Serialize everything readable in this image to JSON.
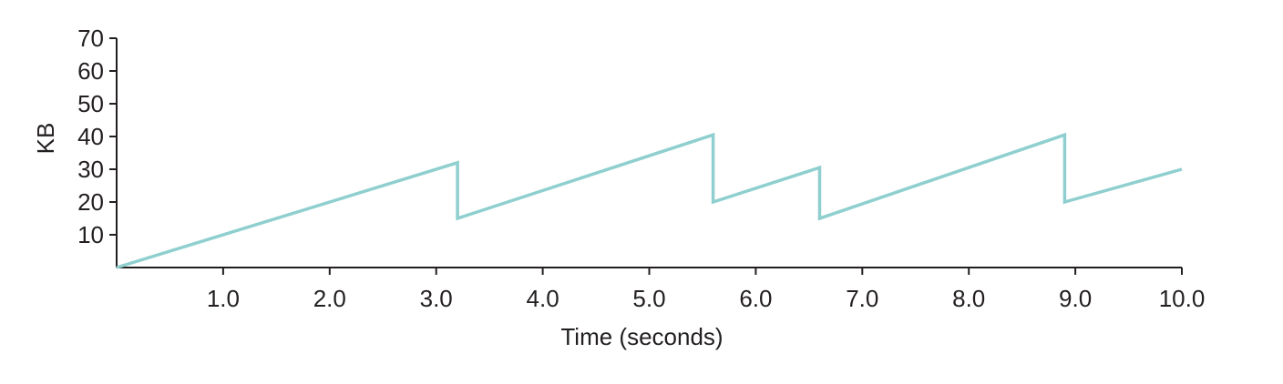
{
  "chart_data": {
    "type": "line",
    "title": "",
    "xlabel": "Time (seconds)",
    "ylabel": "KB",
    "xlim": [
      0,
      10
    ],
    "ylim": [
      0,
      70
    ],
    "x_ticks": [
      "1.0",
      "2.0",
      "3.0",
      "4.0",
      "5.0",
      "6.0",
      "7.0",
      "8.0",
      "9.0",
      "10.0"
    ],
    "y_ticks": [
      "10",
      "20",
      "30",
      "40",
      "50",
      "60",
      "70"
    ],
    "grid": false,
    "legend": "none",
    "series": [
      {
        "color": "#8fcfcf",
        "points": [
          [
            0,
            0
          ],
          [
            3.2,
            32
          ],
          [
            3.2,
            15
          ],
          [
            5.6,
            40.5
          ],
          [
            5.6,
            20
          ],
          [
            6.6,
            30.5
          ],
          [
            6.6,
            15
          ],
          [
            8.9,
            40.5
          ],
          [
            8.9,
            20
          ],
          [
            10.0,
            30
          ]
        ]
      }
    ]
  }
}
